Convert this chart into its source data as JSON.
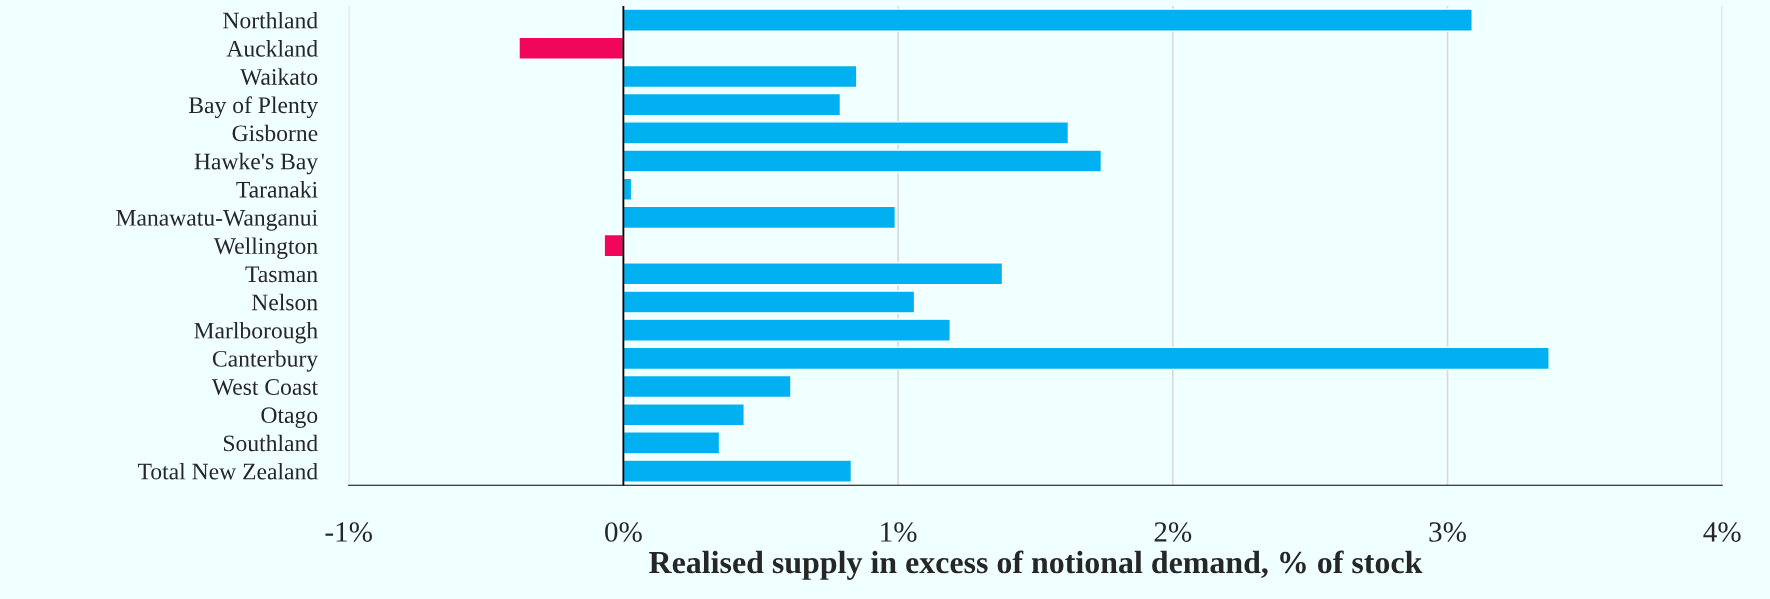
{
  "chart_data": {
    "type": "bar",
    "orientation": "horizontal",
    "categories": [
      "Northland",
      "Auckland",
      "Waikato",
      "Bay of Plenty",
      "Gisborne",
      "Hawke's Bay",
      "Taranaki",
      "Manawatu-Wanganui",
      "Wellington",
      "Tasman",
      "Nelson",
      "Marlborough",
      "Canterbury",
      "West Coast",
      "Otago",
      "Southland",
      "Total New Zealand"
    ],
    "values": [
      3.09,
      -0.38,
      0.85,
      0.79,
      1.62,
      1.74,
      0.03,
      0.99,
      -0.07,
      1.38,
      1.06,
      1.19,
      3.37,
      0.61,
      0.44,
      0.35,
      0.83
    ],
    "colors": [
      "#00b0f0",
      "#f0065a",
      "#00b0f0",
      "#00b0f0",
      "#00b0f0",
      "#00b0f0",
      "#00b0f0",
      "#00b0f0",
      "#f0065a",
      "#00b0f0",
      "#00b0f0",
      "#00b0f0",
      "#00b0f0",
      "#00b0f0",
      "#00b0f0",
      "#00b0f0",
      "#00b0f0"
    ],
    "xlabel": "Realised supply in excess of notional demand, % of stock",
    "xlim": [
      -1,
      4
    ],
    "xticks": [
      {
        "value": -1,
        "label": "-1%"
      },
      {
        "value": 0,
        "label": "0%"
      },
      {
        "value": 1,
        "label": "1%"
      },
      {
        "value": 2,
        "label": "2%"
      },
      {
        "value": 3,
        "label": "3%"
      },
      {
        "value": 4,
        "label": "4%"
      }
    ],
    "ref_lines": [
      {
        "axis": "x",
        "value": 0,
        "color": "#000000"
      }
    ],
    "grid": "x",
    "legend": false
  }
}
